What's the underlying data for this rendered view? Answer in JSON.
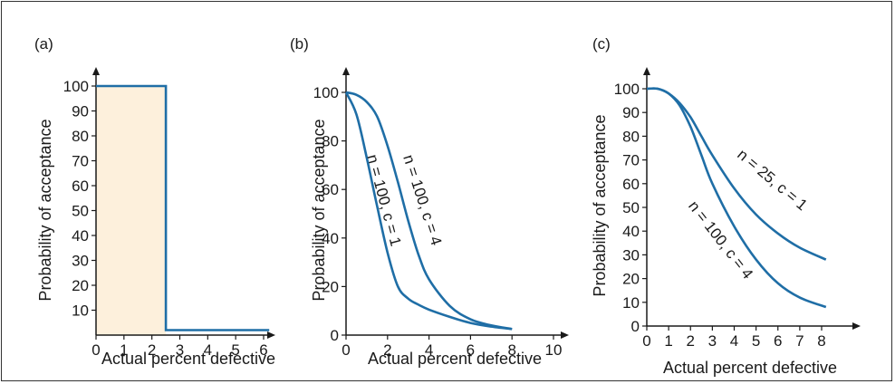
{
  "colors": {
    "curve": "#1f6ea6",
    "fill": "#fdf0dc",
    "axis": "#1a1a1a",
    "border": "#333333"
  },
  "chart_data": [
    {
      "type": "line",
      "panel_label": "(a)",
      "xlabel": "Actual percent defective",
      "ylabel": "Probability of acceptance",
      "xlim": [
        0,
        6.2
      ],
      "ylim": [
        0,
        105
      ],
      "x_ticks": [
        "0",
        "1",
        "2",
        "3",
        "4",
        "5",
        "6"
      ],
      "y_ticks": [
        "10",
        "20",
        "30",
        "40",
        "50",
        "60",
        "70",
        "80",
        "90",
        "100"
      ],
      "shaded_region": {
        "x_from": 0,
        "x_to": 2.5,
        "y_to": 100
      },
      "series": [
        {
          "x": [
            0,
            2.5,
            2.5,
            6.2
          ],
          "y": [
            100,
            100,
            2,
            2
          ]
        }
      ]
    },
    {
      "type": "line",
      "panel_label": "(b)",
      "xlabel": "Actual percent defective",
      "ylabel": "Probability of acceptance",
      "xlim": [
        0,
        10
      ],
      "ylim": [
        0,
        110
      ],
      "x_ticks": [
        "0",
        "2",
        "4",
        "6",
        "8",
        "10"
      ],
      "y_ticks": [
        "0",
        "20",
        "40",
        "60",
        "80",
        "100"
      ],
      "series": [
        {
          "name": "n = 100, c = 1",
          "x": [
            0,
            0.5,
            1.0,
            1.5,
            2.0,
            2.5,
            3.0,
            3.5,
            4.0,
            5.0,
            6.0,
            7.0,
            8.0
          ],
          "y": [
            100,
            91,
            73,
            53,
            34,
            20,
            15,
            12.5,
            10.5,
            7.5,
            5,
            3.5,
            2.5
          ]
        },
        {
          "name": "n = 100, c = 4",
          "x": [
            0,
            0.5,
            1.0,
            1.5,
            2.0,
            2.5,
            3.0,
            3.5,
            4.0,
            5.0,
            6.0,
            7.0,
            8.0
          ],
          "y": [
            100,
            99,
            96,
            90,
            78,
            63,
            47,
            33,
            23,
            12,
            6.5,
            4,
            2.5
          ]
        }
      ]
    },
    {
      "type": "line",
      "panel_label": "(c)",
      "xlabel": "Actual percent defective",
      "ylabel": "Probability of acceptance",
      "xlim": [
        0,
        8.5
      ],
      "ylim": [
        0,
        105
      ],
      "x_ticks": [
        "0",
        "1",
        "2",
        "3",
        "4",
        "5",
        "6",
        "7",
        "8"
      ],
      "y_ticks": [
        "0",
        "10",
        "20",
        "30",
        "40",
        "50",
        "60",
        "70",
        "80",
        "90",
        "100"
      ],
      "series": [
        {
          "name": "n = 25, c = 1",
          "x": [
            0,
            0.5,
            1.0,
            1.5,
            2.0,
            2.5,
            3.0,
            4.0,
            5.0,
            6.0,
            7.0,
            8.2
          ],
          "y": [
            100,
            100,
            98,
            94,
            88,
            80,
            72,
            58,
            47,
            39,
            33,
            28
          ]
        },
        {
          "name": "n = 100, c = 4",
          "x": [
            0,
            0.5,
            1.0,
            1.5,
            2.0,
            2.5,
            3.0,
            4.0,
            5.0,
            6.0,
            7.0,
            8.2
          ],
          "y": [
            100,
            100,
            98,
            93,
            84,
            72,
            60,
            42,
            28,
            18,
            12,
            8
          ]
        }
      ]
    }
  ]
}
